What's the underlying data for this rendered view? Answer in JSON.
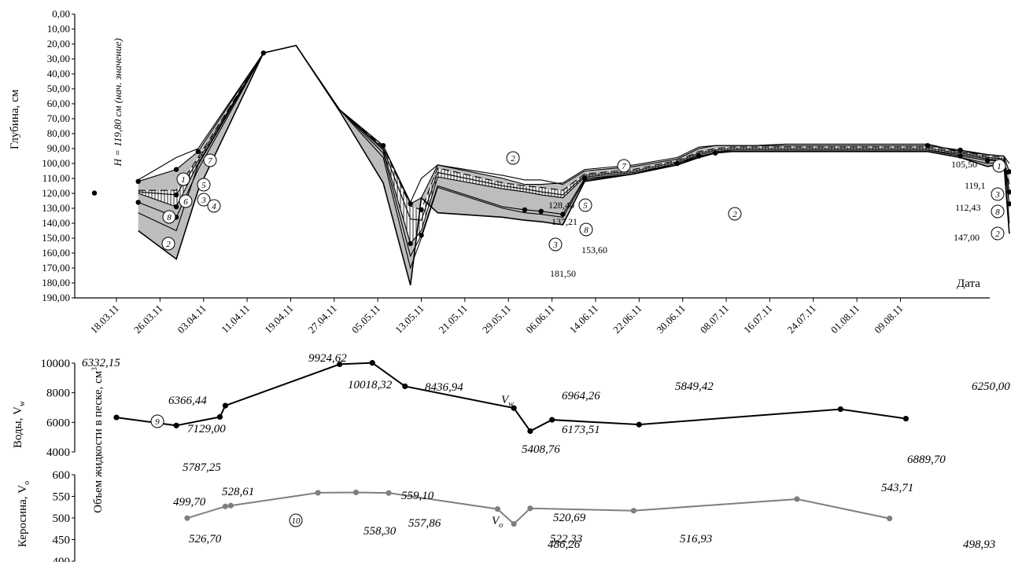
{
  "chart_data": [
    {
      "type": "area",
      "ylabel": "Глубина, см",
      "xlabel": "Дата",
      "y_axis": {
        "min": 0,
        "max": 190,
        "step": 10,
        "inverted": true,
        "tick_labels": [
          "0,00",
          "10,00",
          "20,00",
          "30,00",
          "40,00",
          "50,00",
          "60,00",
          "70,00",
          "80,00",
          "90,00",
          "100,00",
          "110,00",
          "120,00",
          "130,00",
          "140,00",
          "150,00",
          "160,00",
          "170,00",
          "180,00",
          "190,00"
        ]
      },
      "x_axis": {
        "tick_labels": [
          "18.03.11",
          "26.03.11",
          "03.04.11",
          "11.04.11",
          "19.04.11",
          "27.04.11",
          "05.05.11",
          "13.05.11",
          "21.05.11",
          "29.05.11",
          "06.06.11",
          "14.06.11",
          "22.06.11",
          "30.06.11",
          "08.07.11",
          "16.07.11",
          "24.07.11",
          "01.08.11",
          "09.08.11"
        ]
      },
      "initial_point": {
        "day": 0,
        "depth": 119.8,
        "label": "H = 119,80 см (нач. значение)"
      },
      "series": [
        {
          "id": "7",
          "label": "7",
          "x": [
            4,
            11,
            15,
            27,
            33,
            41,
            49,
            54,
            56,
            59,
            71,
            75,
            78,
            82,
            86,
            95,
            103,
            107,
            110,
            113,
            117,
            123,
            125,
            126,
            130,
            132,
            136,
            139,
            149,
            155,
            160,
            163,
            164
          ],
          "y": [
            111,
            96,
            90,
            26,
            21,
            64,
            88,
            126,
            110,
            101,
            110,
            114,
            114,
            113,
            104,
            101,
            96,
            89,
            88,
            88,
            88,
            87,
            87,
            87,
            87,
            87,
            87,
            87,
            87,
            92,
            94,
            95,
            100
          ]
        },
        {
          "id": "1",
          "label": "1",
          "x": [
            4,
            11,
            15,
            27,
            33,
            41,
            49,
            54,
            56,
            59,
            71,
            75,
            78,
            82,
            86,
            95,
            103,
            107,
            110,
            113,
            117,
            123,
            125,
            126,
            130,
            132,
            136,
            139,
            149,
            155,
            160,
            163,
            164
          ],
          "y": [
            112,
            104,
            92,
            26,
            21,
            64,
            88,
            127,
            123,
            101,
            108,
            111,
            111,
            114,
            105,
            102,
            97,
            90,
            88,
            88,
            88,
            88,
            88,
            88,
            88,
            88,
            88,
            88,
            88,
            91,
            94,
            95,
            105.5
          ]
        },
        {
          "id": "5",
          "label": "5",
          "x": [
            4,
            11,
            15,
            27,
            33,
            41,
            49,
            54,
            56,
            59,
            71,
            75,
            78,
            82,
            86,
            95,
            103,
            107,
            110,
            113,
            117,
            123,
            125,
            126,
            130,
            132,
            136,
            139,
            149,
            155,
            160,
            163,
            164
          ],
          "y": [
            118,
            118,
            96,
            26,
            21,
            64,
            89,
            128.4,
            131,
            103,
            113,
            115,
            116,
            118,
            107,
            104,
            98,
            92,
            90,
            89,
            89,
            89,
            89,
            89,
            89,
            89,
            89,
            89,
            89,
            92,
            95,
            96,
            114
          ]
        },
        {
          "id": "6",
          "label": "6",
          "x": [
            4,
            11,
            15,
            27,
            33,
            41,
            49,
            54,
            56,
            59,
            71,
            75,
            78,
            82,
            86,
            95,
            103,
            107,
            110,
            113,
            117,
            123,
            125,
            126,
            130,
            132,
            136,
            139,
            149,
            155,
            160,
            163,
            164
          ],
          "y": [
            119,
            121,
            98,
            26,
            21,
            64,
            90,
            137.21,
            138,
            106,
            115,
            117,
            119,
            121,
            108,
            105,
            99,
            93,
            91,
            90,
            90,
            90,
            90,
            90,
            90,
            90,
            90,
            90,
            90,
            93,
            96,
            97,
            119.1
          ]
        },
        {
          "id": "3",
          "label": "3",
          "x": [
            4,
            11,
            15,
            27,
            33,
            41,
            49,
            54,
            56,
            59,
            71,
            75,
            78,
            82,
            86,
            95,
            103,
            107,
            110,
            113,
            117,
            123,
            125,
            126,
            130,
            132,
            136,
            139,
            149,
            155,
            160,
            163,
            164
          ],
          "y": [
            120,
            129,
            100,
            26,
            21,
            64,
            91,
            153.6,
            145,
            109,
            117,
            119,
            121,
            123,
            109,
            106,
            100,
            94,
            92,
            91,
            91,
            91,
            91,
            91,
            91,
            91,
            91,
            91,
            91,
            94,
            97,
            98,
            119.1
          ]
        },
        {
          "id": "8",
          "label": "8",
          "x": [
            4,
            11,
            15,
            27,
            33,
            41,
            49,
            54,
            56,
            59,
            71,
            75,
            78,
            82,
            86,
            95,
            103,
            107,
            110,
            113,
            117,
            123,
            125,
            126,
            130,
            132,
            136,
            139,
            149,
            155,
            160,
            163,
            164
          ],
          "y": [
            126,
            136,
            104,
            26,
            21,
            64,
            93,
            162,
            148,
            115,
            129,
            131,
            132,
            134,
            110,
            107,
            100,
            95,
            93,
            91,
            91,
            91,
            91,
            91,
            91,
            91,
            91,
            91,
            91,
            95,
            98,
            98,
            127
          ]
        },
        {
          "id": "4",
          "label": "4",
          "x": [
            4,
            11,
            15,
            27,
            33,
            41,
            49,
            54,
            56,
            59,
            71,
            75,
            78,
            82,
            86,
            95,
            103,
            107,
            110,
            113,
            117,
            123,
            125,
            126,
            130,
            132,
            136,
            139,
            149,
            155,
            160,
            163,
            164
          ],
          "y": [
            133,
            145,
            101,
            26,
            21,
            64,
            96,
            170,
            150,
            116,
            130,
            133,
            134,
            136,
            111,
            107,
            101,
            95,
            93,
            92,
            92,
            92,
            92,
            92,
            92,
            92,
            92,
            92,
            92,
            96,
            100,
            99,
            140
          ]
        },
        {
          "id": "2",
          "label": "2",
          "x": [
            4,
            11,
            15,
            27,
            33,
            41,
            49,
            54,
            56,
            59,
            71,
            75,
            78,
            82,
            86,
            95,
            103,
            107,
            110,
            113,
            117,
            123,
            125,
            126,
            130,
            132,
            136,
            139,
            149,
            155,
            160,
            163,
            164
          ],
          "y": [
            145,
            164,
            118,
            26,
            21,
            65,
            113,
            181.5,
            123,
            133,
            136,
            138,
            139,
            141,
            112,
            107,
            101,
            96,
            93,
            92,
            92,
            92,
            92,
            92,
            92,
            92,
            92,
            92,
            92,
            96,
            102,
            100,
            147
          ]
        }
      ],
      "value_labels": [
        "128,40",
        "137,21",
        "153,60",
        "181,50",
        "105,50",
        "119,1",
        "112,43",
        "147,00"
      ],
      "mean_line": "dashed"
    },
    {
      "type": "line",
      "ylabel": "Воды, V",
      "ylabel_subscript": "w",
      "series_label": "V",
      "series_subscript": "w",
      "marker": "9",
      "y_axis": {
        "min": 4000,
        "max": 10000,
        "tick_labels": [
          "4000",
          "6000",
          "8000",
          "10000"
        ]
      },
      "points": [
        {
          "x": 0,
          "y": 6332.15,
          "label": "6332,15"
        },
        {
          "x": 11,
          "y": 5787.25,
          "label": "5787,25"
        },
        {
          "x": 19,
          "y": 6366.44,
          "label": "6366,44"
        },
        {
          "x": 20,
          "y": 7129.0,
          "label": "7129,00"
        },
        {
          "x": 41,
          "y": 9924.62,
          "label": "9924,62"
        },
        {
          "x": 47,
          "y": 10018.32,
          "label": "10018,32"
        },
        {
          "x": 53,
          "y": 8436.94,
          "label": "8436,94"
        },
        {
          "x": 73,
          "y": 6964.26,
          "label": "6964,26"
        },
        {
          "x": 76,
          "y": 5408.76,
          "label": "5408,76"
        },
        {
          "x": 80,
          "y": 6173.51,
          "label": "6173,51"
        },
        {
          "x": 96,
          "y": 5849.42,
          "label": "5849,42"
        },
        {
          "x": 133,
          "y": 6889.7,
          "label": "6889,70"
        },
        {
          "x": 145,
          "y": 6250.0,
          "label": "6250,00"
        }
      ]
    },
    {
      "type": "line",
      "ylabel": "Керосина, V",
      "ylabel_subscript": "o",
      "series_label": "V",
      "series_subscript": "o",
      "marker": "10",
      "color": "#7f7f7f",
      "y_axis": {
        "min": 400,
        "max": 600,
        "tick_labels": [
          "400",
          "450",
          "500",
          "550",
          "600"
        ]
      },
      "points": [
        {
          "x": 13,
          "y": 499.7,
          "label": "499,70"
        },
        {
          "x": 20,
          "y": 526.7,
          "label": "526,70"
        },
        {
          "x": 21,
          "y": 528.61,
          "label": "528,61"
        },
        {
          "x": 37,
          "y": 558.3,
          "label": "558,30"
        },
        {
          "x": 44,
          "y": 559.1,
          "label": "559,10"
        },
        {
          "x": 50,
          "y": 557.86,
          "label": "557,86"
        },
        {
          "x": 70,
          "y": 520.69,
          "label": "520,69"
        },
        {
          "x": 73,
          "y": 486.26,
          "label": "486,26"
        },
        {
          "x": 76,
          "y": 522.33,
          "label": "522,33"
        },
        {
          "x": 95,
          "y": 516.93,
          "label": "516,93"
        },
        {
          "x": 125,
          "y": 543.71,
          "label": "543,71"
        },
        {
          "x": 142,
          "y": 498.93,
          "label": "498,93"
        }
      ]
    }
  ],
  "shared_ylabel": "Объем жидкости в песке, см",
  "shared_ylabel_sup": "3",
  "colors": {
    "ink": "#000000",
    "fill_gray": "#bdbdbd",
    "fill_light": "#dcdcdc",
    "kerosene": "#7f7f7f"
  }
}
